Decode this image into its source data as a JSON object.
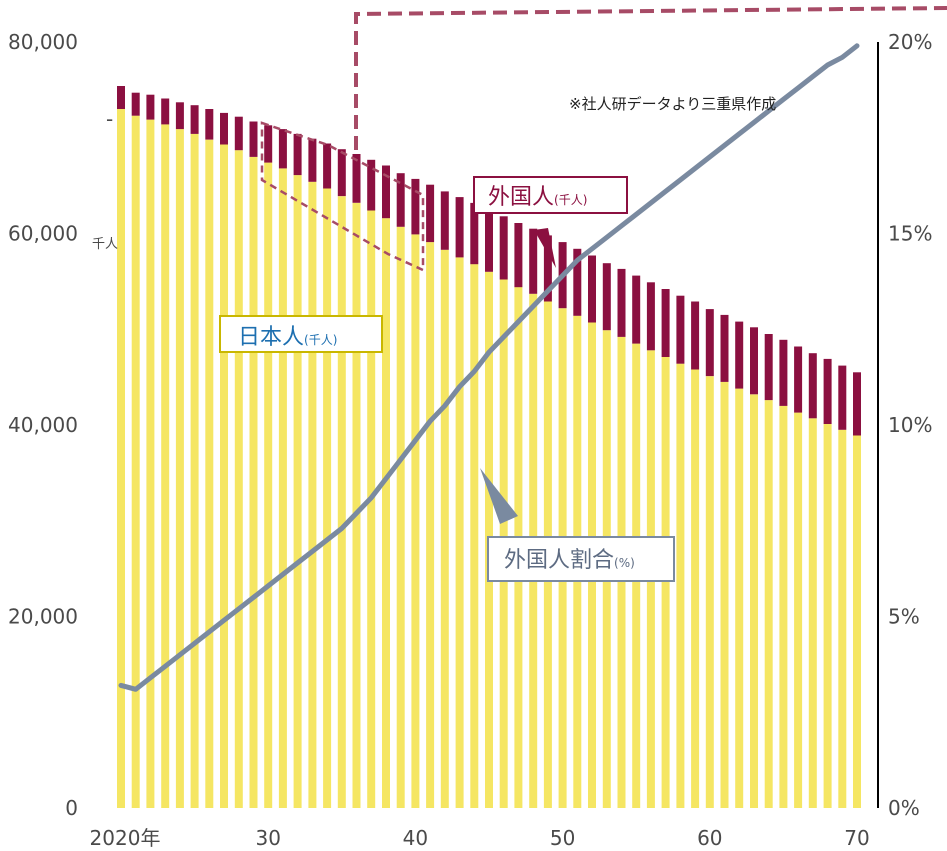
{
  "chart_data": {
    "type": "bar",
    "stacked": true,
    "x_start": 2020,
    "x_end": 2070,
    "x_tick_labels": [
      "2020年",
      "30",
      "40",
      "50",
      "60",
      "70"
    ],
    "left_axis": {
      "ticks": [
        "0",
        "20,000",
        "40,000",
        "60,000",
        "80,000"
      ],
      "range": [
        0,
        80000
      ],
      "unit": "千人"
    },
    "right_axis": {
      "ticks": [
        "0%",
        "5%",
        "10%",
        "15%",
        "20%"
      ],
      "range": [
        0,
        20
      ]
    },
    "note": "※社人研データより三重県作成",
    "series": [
      {
        "name": "日本人",
        "unit_label": "(千人)",
        "color": "#f5e663",
        "values": [
          73000,
          72300,
          71900,
          71400,
          70900,
          70400,
          69800,
          69300,
          68700,
          68000,
          67400,
          66800,
          66100,
          65400,
          64700,
          63900,
          63200,
          62400,
          61600,
          60700,
          59900,
          59100,
          58300,
          57500,
          56800,
          56000,
          55200,
          54400,
          53700,
          52900,
          52200,
          51400,
          50700,
          49900,
          49200,
          48500,
          47800,
          47100,
          46400,
          45800,
          45100,
          44500,
          43800,
          43200,
          42600,
          42000,
          41300,
          40700,
          40100,
          39500,
          38900
        ]
      },
      {
        "name": "外国人",
        "unit_label": "(千人)",
        "color": "#8b1040",
        "values": [
          2400,
          2400,
          2600,
          2700,
          2800,
          3000,
          3200,
          3300,
          3500,
          3700,
          3900,
          4100,
          4300,
          4500,
          4700,
          4900,
          5100,
          5300,
          5500,
          5600,
          5800,
          6000,
          6100,
          6300,
          6400,
          6500,
          6600,
          6700,
          6800,
          6900,
          6900,
          7000,
          7000,
          7000,
          7100,
          7100,
          7100,
          7100,
          7100,
          7100,
          7000,
          7000,
          7000,
          7000,
          6900,
          6900,
          6900,
          6800,
          6800,
          6700,
          6600
        ]
      },
      {
        "name": "外国人割合",
        "unit_label": "(%)",
        "color": "#7a8aa0",
        "axis": "right",
        "values": [
          3.2,
          3.1,
          3.4,
          3.7,
          4.0,
          4.3,
          4.6,
          4.9,
          5.2,
          5.5,
          5.8,
          6.1,
          6.4,
          6.7,
          7.0,
          7.3,
          7.7,
          8.1,
          8.6,
          9.1,
          9.6,
          10.1,
          10.5,
          11.0,
          11.4,
          11.9,
          12.3,
          12.7,
          13.1,
          13.5,
          13.9,
          14.3,
          14.6,
          14.9,
          15.2,
          15.5,
          15.8,
          16.1,
          16.4,
          16.7,
          17.0,
          17.3,
          17.6,
          17.9,
          18.2,
          18.5,
          18.8,
          19.1,
          19.4,
          19.6,
          19.9
        ]
      }
    ]
  },
  "labels": {
    "japanese": {
      "main": "日本人",
      "sub": "(千人)"
    },
    "foreign": {
      "main": "外国人",
      "sub": "(千人)"
    },
    "ratio": {
      "main": "外国人割合",
      "sub": "(%)"
    }
  },
  "colors": {
    "japanese_bar": "#f5e663",
    "foreign_bar": "#8b1040",
    "ratio_line": "#7a8aa0",
    "label_border_yellow": "#c9b700",
    "label_border_red": "#8b1040",
    "label_border_grey": "#7a8aa0",
    "japanese_text": "#1d6fb0",
    "foreign_text": "#8b1040",
    "ratio_text": "#5d6b82",
    "highlight_dash": "#a74b66"
  }
}
